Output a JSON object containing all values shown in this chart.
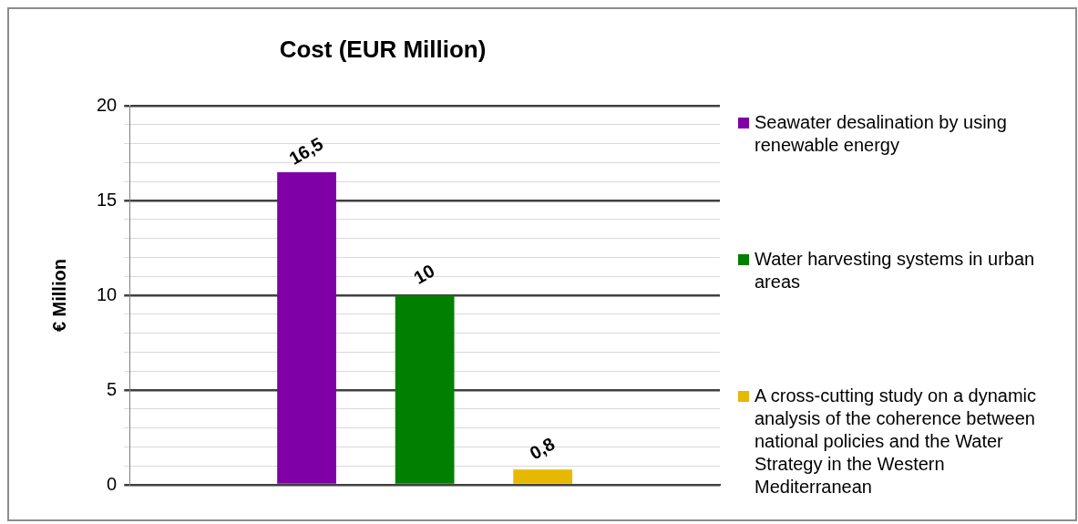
{
  "chart_data": {
    "type": "bar",
    "title": "Cost (EUR Million)",
    "ylabel": "€ Million",
    "categories": [
      null
    ],
    "series": [
      {
        "name": "Seawater desalination by using renewable energy",
        "color": "#7f00a6",
        "values": [
          16.5
        ],
        "value_labels": [
          "16,5"
        ]
      },
      {
        "name": "Water harvesting systems in urban areas",
        "color": "#007f00",
        "values": [
          10
        ],
        "value_labels": [
          "10"
        ]
      },
      {
        "name": "A cross-cutting study on a dynamic analysis of the coherence between national policies and the Water Strategy in the Western Mediterranean",
        "color": "#e6b800",
        "values": [
          0.8
        ],
        "value_labels": [
          "0,8"
        ]
      }
    ],
    "ylim": [
      0,
      20
    ],
    "yticks": [
      0,
      {
        "value": 1,
        "label": null
      },
      {
        "value": 2,
        "label": null
      },
      {
        "value": 3,
        "label": null
      },
      {
        "value": 4,
        "label": null
      },
      5,
      {
        "value": 6,
        "label": null
      },
      {
        "value": 7,
        "label": null
      },
      {
        "value": 8,
        "label": null
      },
      {
        "value": 9,
        "label": null
      },
      10,
      {
        "value": 11,
        "label": null
      },
      {
        "value": 12,
        "label": null
      },
      {
        "value": 13,
        "label": null
      },
      {
        "value": 14,
        "label": null
      },
      15,
      {
        "value": 16,
        "label": null
      },
      {
        "value": 17,
        "label": null
      },
      {
        "value": 18,
        "label": null
      },
      {
        "value": 19,
        "label": null
      },
      20
    ],
    "grid": true,
    "legend": "right"
  }
}
